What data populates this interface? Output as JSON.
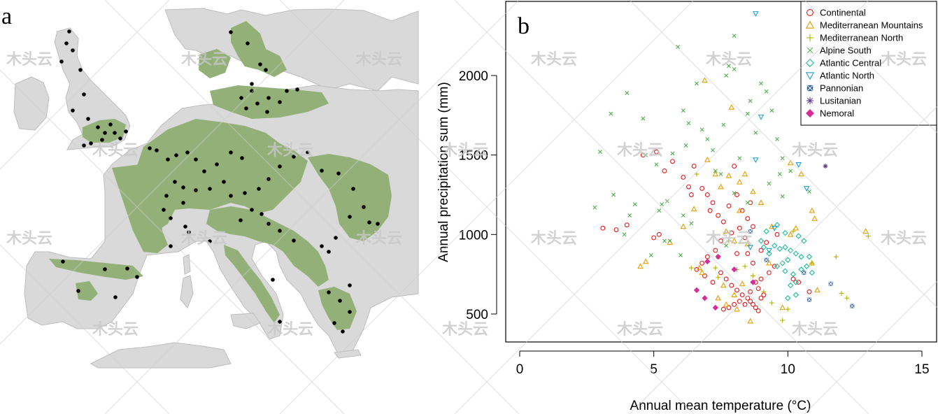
{
  "panels": {
    "a": {
      "letter": "a"
    },
    "b": {
      "letter": "b"
    }
  },
  "map": {
    "land_color": "#d9d9d9",
    "sea_color": "#ffffff",
    "forest_color": "#93b078",
    "site_color": "#000000",
    "sites_description_icon": "black-dot"
  },
  "watermark": {
    "text": "木头云",
    "color": "#c8c8c8"
  },
  "chart_data": {
    "type": "scatter",
    "title": "",
    "xlabel": "Annual mean temperature (°C)",
    "ylabel": "Annual precipitation sum (mm)",
    "xlim": [
      -0.5,
      15.5
    ],
    "ylim": [
      280,
      2420
    ],
    "xticks": [
      0,
      5,
      10,
      15
    ],
    "xtick_labels": [
      "0",
      "5",
      "10",
      "15"
    ],
    "yticks": [
      500,
      1000,
      1500,
      2000
    ],
    "ytick_labels": [
      "500",
      "1000",
      "1500",
      "2000"
    ],
    "grid": false,
    "legend_position": "top-right",
    "series": [
      {
        "name": "Continental",
        "color": "#e41a1c",
        "marker": "circle",
        "points": [
          [
            3.1,
            1040
          ],
          [
            3.6,
            1030
          ],
          [
            4.0,
            1060
          ],
          [
            4.6,
            1500
          ],
          [
            5.1,
            1520
          ],
          [
            5.2,
            1000
          ],
          [
            5.0,
            980
          ],
          [
            5.4,
            1400
          ],
          [
            5.7,
            1460
          ],
          [
            6.1,
            1360
          ],
          [
            6.3,
            1300
          ],
          [
            6.4,
            1250
          ],
          [
            6.5,
            1430
          ],
          [
            6.8,
            1290
          ],
          [
            7.0,
            1250
          ],
          [
            7.1,
            1150
          ],
          [
            7.2,
            1200
          ],
          [
            7.4,
            1120
          ],
          [
            7.6,
            1080
          ],
          [
            7.8,
            1180
          ],
          [
            8.0,
            1430
          ],
          [
            8.1,
            1250
          ],
          [
            8.3,
            1150
          ],
          [
            8.5,
            1100
          ],
          [
            8.6,
            1200
          ],
          [
            8.7,
            1050
          ],
          [
            8.4,
            980
          ],
          [
            8.2,
            1040
          ],
          [
            7.9,
            1010
          ],
          [
            7.5,
            960
          ],
          [
            7.3,
            900
          ],
          [
            7.0,
            860
          ],
          [
            6.8,
            820
          ],
          [
            6.6,
            780
          ],
          [
            6.9,
            740
          ],
          [
            7.2,
            700
          ],
          [
            7.5,
            760
          ],
          [
            7.7,
            720
          ],
          [
            7.9,
            680
          ],
          [
            8.1,
            650
          ],
          [
            8.3,
            620
          ],
          [
            8.5,
            600
          ],
          [
            8.6,
            580
          ],
          [
            8.7,
            560
          ],
          [
            8.8,
            540
          ],
          [
            8.9,
            520
          ],
          [
            9.0,
            600
          ],
          [
            8.2,
            580
          ],
          [
            8.4,
            560
          ],
          [
            8.0,
            560
          ],
          [
            7.8,
            540
          ],
          [
            7.6,
            530
          ],
          [
            8.6,
            640
          ],
          [
            8.9,
            660
          ],
          [
            9.1,
            620
          ],
          [
            8.8,
            700
          ],
          [
            9.0,
            720
          ],
          [
            9.3,
            760
          ],
          [
            9.5,
            800
          ],
          [
            8.5,
            880
          ],
          [
            8.7,
            820
          ],
          [
            9.0,
            900
          ],
          [
            10.2,
            720
          ],
          [
            10.4,
            700
          ],
          [
            10.8,
            640
          ],
          [
            9.6,
            1000
          ],
          [
            9.2,
            950
          ],
          [
            8.1,
            880
          ]
        ]
      },
      {
        "name": "Mediterranean Mountains",
        "color": "#e69f00",
        "marker": "triangle-up",
        "points": [
          [
            6.9,
            1970
          ],
          [
            7.9,
            1800
          ],
          [
            4.5,
            800
          ],
          [
            4.7,
            830
          ],
          [
            6.7,
            790
          ],
          [
            6.8,
            760
          ],
          [
            7.0,
            1470
          ],
          [
            7.3,
            1380
          ],
          [
            7.5,
            1300
          ],
          [
            8.2,
            1330
          ],
          [
            8.4,
            1380
          ],
          [
            8.7,
            1270
          ],
          [
            9.0,
            1200
          ],
          [
            10.1,
            1450
          ],
          [
            10.9,
            1150
          ],
          [
            11.0,
            1100
          ],
          [
            12.9,
            1020
          ],
          [
            10.9,
            820
          ],
          [
            11.1,
            650
          ],
          [
            10.1,
            1000
          ],
          [
            10.3,
            1040
          ],
          [
            9.4,
            1050
          ],
          [
            8.2,
            1150
          ],
          [
            7.7,
            1020
          ],
          [
            8.0,
            960
          ],
          [
            8.5,
            940
          ],
          [
            8.3,
            690
          ],
          [
            8.0,
            620
          ],
          [
            7.7,
            560
          ],
          [
            7.4,
            600
          ],
          [
            7.6,
            680
          ],
          [
            8.1,
            530
          ],
          [
            8.6,
            455
          ],
          [
            9.3,
            820
          ],
          [
            6.1,
            1050
          ],
          [
            6.5,
            1160
          ],
          [
            5.6,
            950
          ],
          [
            7.8,
            1370
          ],
          [
            10.5,
            1380
          ],
          [
            9.8,
            540
          ]
        ]
      },
      {
        "name": "Mediterranean North",
        "color": "#b3b300",
        "marker": "plus",
        "points": [
          [
            6.6,
            1380
          ],
          [
            6.4,
            790
          ],
          [
            7.3,
            790
          ],
          [
            7.8,
            960
          ],
          [
            8.1,
            780
          ],
          [
            8.4,
            800
          ],
          [
            8.7,
            740
          ],
          [
            9.1,
            640
          ],
          [
            9.4,
            570
          ],
          [
            9.8,
            460
          ],
          [
            10.0,
            530
          ],
          [
            10.9,
            820
          ],
          [
            11.8,
            860
          ],
          [
            12.0,
            630
          ],
          [
            12.2,
            600
          ],
          [
            13.0,
            990
          ],
          [
            10.2,
            1020
          ],
          [
            7.4,
            730
          ]
        ]
      },
      {
        "name": "Alpine South",
        "color": "#4daf4a",
        "marker": "cross",
        "points": [
          [
            2.8,
            1170
          ],
          [
            3.0,
            1520
          ],
          [
            3.4,
            1760
          ],
          [
            3.5,
            1250
          ],
          [
            4.0,
            1890
          ],
          [
            4.1,
            1120
          ],
          [
            4.3,
            1190
          ],
          [
            4.6,
            1730
          ],
          [
            4.7,
            1500
          ],
          [
            5.1,
            1440
          ],
          [
            5.3,
            1190
          ],
          [
            5.5,
            1210
          ],
          [
            5.7,
            1510
          ],
          [
            5.9,
            2180
          ],
          [
            6.1,
            1780
          ],
          [
            6.2,
            1560
          ],
          [
            6.3,
            1700
          ],
          [
            6.4,
            1070
          ],
          [
            6.6,
            1950
          ],
          [
            6.8,
            1660
          ],
          [
            7.0,
            1600
          ],
          [
            7.2,
            1530
          ],
          [
            7.3,
            1400
          ],
          [
            7.5,
            1380
          ],
          [
            7.7,
            2000
          ],
          [
            7.8,
            2060
          ],
          [
            8.0,
            2040
          ],
          [
            7.6,
            1690
          ],
          [
            8.2,
            1480
          ],
          [
            8.5,
            1760
          ],
          [
            8.6,
            1840
          ],
          [
            8.8,
            1640
          ],
          [
            9.0,
            1950
          ],
          [
            9.2,
            1900
          ],
          [
            9.4,
            1780
          ],
          [
            9.6,
            1600
          ],
          [
            9.8,
            1480
          ],
          [
            9.7,
            1380
          ],
          [
            8.0,
            1260
          ],
          [
            8.5,
            1200
          ],
          [
            9.3,
            1320
          ],
          [
            9.8,
            1240
          ],
          [
            10.1,
            1400
          ],
          [
            10.8,
            1270
          ],
          [
            5.4,
            960
          ],
          [
            5.6,
            960
          ],
          [
            4.9,
            870
          ],
          [
            6.0,
            870
          ],
          [
            7.4,
            860
          ],
          [
            7.7,
            930
          ],
          [
            8.0,
            2250
          ],
          [
            3.9,
            1000
          ],
          [
            5.2,
            1150
          ],
          [
            6.1,
            1120
          ]
        ]
      },
      {
        "name": "Atlantic Central",
        "color": "#1abc9c",
        "marker": "diamond",
        "points": [
          [
            9.1,
            920
          ],
          [
            9.3,
            880
          ],
          [
            9.5,
            930
          ],
          [
            9.7,
            910
          ],
          [
            9.9,
            920
          ],
          [
            10.1,
            900
          ],
          [
            10.3,
            880
          ],
          [
            10.5,
            860
          ],
          [
            10.0,
            840
          ],
          [
            9.8,
            820
          ],
          [
            9.6,
            800
          ],
          [
            9.9,
            770
          ],
          [
            10.2,
            750
          ],
          [
            10.5,
            780
          ],
          [
            10.7,
            800
          ],
          [
            10.9,
            760
          ],
          [
            10.3,
            700
          ],
          [
            10.1,
            680
          ],
          [
            10.0,
            600
          ],
          [
            10.3,
            620
          ],
          [
            9.6,
            1060
          ],
          [
            9.9,
            1010
          ],
          [
            10.4,
            990
          ],
          [
            10.6,
            960
          ],
          [
            10.8,
            860
          ],
          [
            9.2,
            1020
          ],
          [
            9.0,
            960
          ]
        ]
      },
      {
        "name": "Atlantic North",
        "color": "#1f9fd6",
        "marker": "triangle-down",
        "points": [
          [
            8.8,
            2390
          ],
          [
            9.0,
            1740
          ],
          [
            8.8,
            1470
          ],
          [
            9.5,
            1040
          ],
          [
            10.4,
            1440
          ],
          [
            10.7,
            1290
          ],
          [
            8.6,
            920
          ],
          [
            9.3,
            900
          ]
        ]
      },
      {
        "name": "Pannonian",
        "color": "#2c5fa8",
        "marker": "square-x",
        "points": [
          [
            9.2,
            840
          ],
          [
            10.6,
            760
          ],
          [
            10.8,
            590
          ],
          [
            11.6,
            690
          ],
          [
            12.4,
            550
          ],
          [
            8.6,
            1020
          ]
        ]
      },
      {
        "name": "Lusitanian",
        "color": "#5e3c99",
        "marker": "asterisk",
        "points": [
          [
            11.4,
            1430
          ]
        ]
      },
      {
        "name": "Nemoral",
        "color": "#d62d9a",
        "marker": "diamond-plus",
        "points": [
          [
            6.6,
            650
          ],
          [
            6.9,
            600
          ],
          [
            7.3,
            540
          ],
          [
            7.4,
            860
          ],
          [
            8.0,
            780
          ],
          [
            8.7,
            700
          ],
          [
            7.0,
            830
          ]
        ]
      }
    ]
  }
}
